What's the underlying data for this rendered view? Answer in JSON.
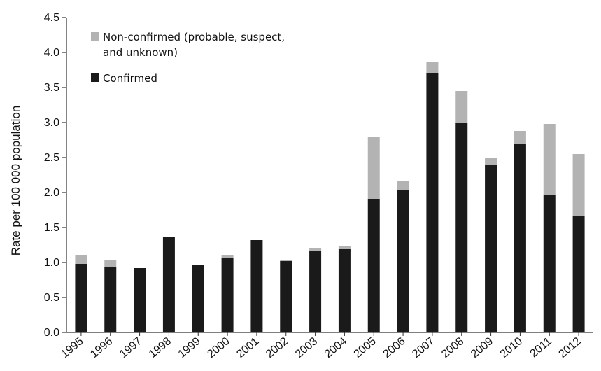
{
  "chart_data": {
    "type": "bar",
    "stacked": true,
    "categories": [
      "1995",
      "1996",
      "1997",
      "1998",
      "1999",
      "2000",
      "2001",
      "2002",
      "2003",
      "2004",
      "2005",
      "2006",
      "2007",
      "2008",
      "2009",
      "2010",
      "2011",
      "2012"
    ],
    "series": [
      {
        "name": "Confirmed",
        "color": "#1a1a1a",
        "values": [
          0.98,
          0.93,
          0.92,
          1.37,
          0.96,
          1.07,
          1.32,
          1.02,
          1.17,
          1.19,
          1.91,
          2.04,
          3.7,
          3.0,
          2.4,
          2.7,
          1.96,
          1.66
        ]
      },
      {
        "name": "Non-confirmed (probable, suspect, and unknown)",
        "color": "#b3b3b3",
        "values": [
          0.12,
          0.11,
          0.0,
          0.0,
          0.01,
          0.03,
          0.0,
          0.01,
          0.03,
          0.04,
          0.89,
          0.13,
          0.16,
          0.45,
          0.09,
          0.18,
          1.02,
          0.89
        ]
      }
    ],
    "title": "",
    "xlabel": "",
    "ylabel": "Rate per 100 000 population",
    "ylim": [
      0,
      4.5
    ],
    "yticks": [
      "0.0",
      "0.5",
      "1.0",
      "1.5",
      "2.0",
      "2.5",
      "3.0",
      "3.5",
      "4.0",
      "4.5"
    ],
    "grid": false,
    "legend": {
      "placement": "top-left",
      "entries": [
        {
          "lines": [
            "Non-confirmed (probable, suspect,",
            "and unknown)"
          ],
          "color": "#b3b3b3"
        },
        {
          "lines": [
            "Confirmed"
          ],
          "color": "#1a1a1a"
        }
      ]
    }
  }
}
